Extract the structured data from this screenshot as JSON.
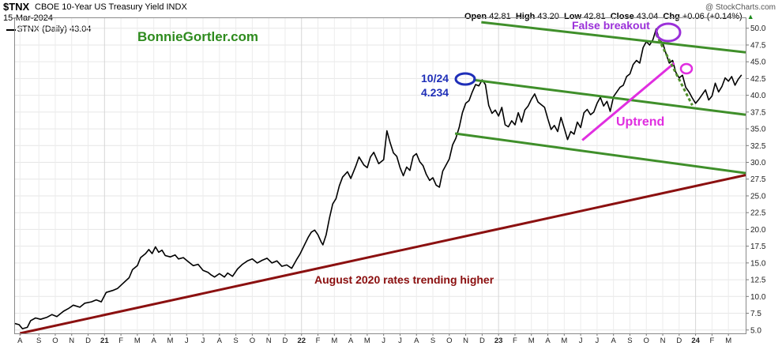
{
  "header": {
    "symbol": "$TNX",
    "description": "CBOE 10-Year US Treasury Yield INDX",
    "date": "15-Mar-2024",
    "legend": "$TNX (Daily) 43.04",
    "credit": "@ StockCharts.com",
    "ohlc": {
      "open_label": "Open",
      "open": "42.81",
      "high_label": "High",
      "high": "43.20",
      "low_label": "Low",
      "low": "42.81",
      "close_label": "Close",
      "close": "43.04",
      "chg_label": "Chg",
      "chg": "+0.06 (+0.14%)"
    }
  },
  "chart_data": {
    "type": "line",
    "title": "CBOE 10-Year US Treasury Yield INDX",
    "ylim": [
      4.5,
      51.5
    ],
    "y_ticks": [
      5.0,
      7.5,
      10.0,
      12.5,
      15.0,
      17.5,
      20.0,
      22.5,
      25.0,
      27.5,
      30.0,
      32.5,
      35.0,
      37.5,
      40.0,
      42.5,
      45.0,
      47.5,
      50.0
    ],
    "y_tick_labels": [
      "5.0",
      "7.5",
      "10.0",
      "12.5",
      "15.0",
      "17.5",
      "20.0",
      "22.5",
      "25.0",
      "27.5",
      "30.0",
      "32.5",
      "35.0",
      "37.5",
      "40.0",
      "42.5",
      "45.0",
      "47.5",
      "50.0"
    ],
    "x_range": [
      0,
      44.55
    ],
    "x_ticks": [
      {
        "label": "A",
        "m": 0.35,
        "bold": false
      },
      {
        "label": "S",
        "m": 1.5,
        "bold": false
      },
      {
        "label": "O",
        "m": 2.5,
        "bold": false
      },
      {
        "label": "N",
        "m": 3.5,
        "bold": false
      },
      {
        "label": "D",
        "m": 4.5,
        "bold": false
      },
      {
        "label": "21",
        "m": 5.5,
        "bold": true
      },
      {
        "label": "F",
        "m": 6.5,
        "bold": false
      },
      {
        "label": "M",
        "m": 7.5,
        "bold": false
      },
      {
        "label": "A",
        "m": 8.5,
        "bold": false
      },
      {
        "label": "M",
        "m": 9.5,
        "bold": false
      },
      {
        "label": "J",
        "m": 10.5,
        "bold": false
      },
      {
        "label": "J",
        "m": 11.5,
        "bold": false
      },
      {
        "label": "A",
        "m": 12.5,
        "bold": false
      },
      {
        "label": "S",
        "m": 13.5,
        "bold": false
      },
      {
        "label": "O",
        "m": 14.5,
        "bold": false
      },
      {
        "label": "N",
        "m": 15.5,
        "bold": false
      },
      {
        "label": "D",
        "m": 16.5,
        "bold": false
      },
      {
        "label": "22",
        "m": 17.5,
        "bold": true
      },
      {
        "label": "F",
        "m": 18.5,
        "bold": false
      },
      {
        "label": "M",
        "m": 19.5,
        "bold": false
      },
      {
        "label": "A",
        "m": 20.5,
        "bold": false
      },
      {
        "label": "M",
        "m": 21.5,
        "bold": false
      },
      {
        "label": "J",
        "m": 22.5,
        "bold": false
      },
      {
        "label": "J",
        "m": 23.5,
        "bold": false
      },
      {
        "label": "A",
        "m": 24.5,
        "bold": false
      },
      {
        "label": "S",
        "m": 25.5,
        "bold": false
      },
      {
        "label": "O",
        "m": 26.5,
        "bold": false
      },
      {
        "label": "N",
        "m": 27.5,
        "bold": false
      },
      {
        "label": "D",
        "m": 28.5,
        "bold": false
      },
      {
        "label": "23",
        "m": 29.5,
        "bold": true
      },
      {
        "label": "F",
        "m": 30.5,
        "bold": false
      },
      {
        "label": "M",
        "m": 31.5,
        "bold": false
      },
      {
        "label": "A",
        "m": 32.5,
        "bold": false
      },
      {
        "label": "M",
        "m": 33.5,
        "bold": false
      },
      {
        "label": "J",
        "m": 34.5,
        "bold": false
      },
      {
        "label": "J",
        "m": 35.5,
        "bold": false
      },
      {
        "label": "A",
        "m": 36.5,
        "bold": false
      },
      {
        "label": "S",
        "m": 37.5,
        "bold": false
      },
      {
        "label": "O",
        "m": 38.5,
        "bold": false
      },
      {
        "label": "N",
        "m": 39.5,
        "bold": false
      },
      {
        "label": "D",
        "m": 40.5,
        "bold": false
      },
      {
        "label": "24",
        "m": 41.5,
        "bold": true
      },
      {
        "label": "F",
        "m": 42.5,
        "bold": false
      },
      {
        "label": "M",
        "m": 43.5,
        "bold": false
      }
    ],
    "series": [
      {
        "name": "$TNX (Daily)",
        "color": "#000000",
        "points": [
          [
            0.0,
            6.0
          ],
          [
            0.3,
            5.8
          ],
          [
            0.5,
            5.2
          ],
          [
            0.8,
            5.4
          ],
          [
            1.0,
            6.4
          ],
          [
            1.3,
            6.8
          ],
          [
            1.6,
            6.6
          ],
          [
            2.0,
            6.9
          ],
          [
            2.3,
            7.3
          ],
          [
            2.6,
            7.0
          ],
          [
            3.0,
            7.8
          ],
          [
            3.3,
            8.2
          ],
          [
            3.6,
            8.7
          ],
          [
            4.0,
            8.4
          ],
          [
            4.3,
            9.0
          ],
          [
            4.7,
            9.2
          ],
          [
            5.0,
            9.5
          ],
          [
            5.3,
            9.2
          ],
          [
            5.6,
            10.6
          ],
          [
            6.0,
            10.9
          ],
          [
            6.3,
            11.2
          ],
          [
            6.6,
            11.9
          ],
          [
            7.0,
            12.8
          ],
          [
            7.2,
            14.0
          ],
          [
            7.5,
            14.6
          ],
          [
            7.7,
            15.8
          ],
          [
            8.0,
            16.4
          ],
          [
            8.2,
            17.0
          ],
          [
            8.4,
            16.4
          ],
          [
            8.6,
            17.4
          ],
          [
            8.8,
            16.6
          ],
          [
            9.0,
            16.9
          ],
          [
            9.2,
            16.1
          ],
          [
            9.5,
            15.9
          ],
          [
            9.8,
            16.2
          ],
          [
            10.0,
            15.6
          ],
          [
            10.3,
            15.8
          ],
          [
            10.6,
            15.2
          ],
          [
            10.9,
            14.6
          ],
          [
            11.2,
            14.8
          ],
          [
            11.5,
            13.9
          ],
          [
            11.8,
            13.6
          ],
          [
            12.0,
            13.2
          ],
          [
            12.2,
            12.9
          ],
          [
            12.5,
            13.4
          ],
          [
            12.8,
            12.9
          ],
          [
            13.0,
            13.5
          ],
          [
            13.3,
            13.0
          ],
          [
            13.6,
            14.1
          ],
          [
            13.9,
            14.8
          ],
          [
            14.2,
            15.3
          ],
          [
            14.5,
            15.6
          ],
          [
            14.8,
            15.0
          ],
          [
            15.1,
            15.4
          ],
          [
            15.4,
            15.7
          ],
          [
            15.7,
            15.0
          ],
          [
            16.0,
            15.3
          ],
          [
            16.3,
            14.5
          ],
          [
            16.6,
            14.7
          ],
          [
            16.9,
            14.2
          ],
          [
            17.2,
            15.5
          ],
          [
            17.4,
            16.3
          ],
          [
            17.7,
            17.8
          ],
          [
            17.9,
            18.8
          ],
          [
            18.1,
            19.6
          ],
          [
            18.3,
            19.9
          ],
          [
            18.5,
            19.2
          ],
          [
            18.7,
            18.1
          ],
          [
            18.8,
            17.7
          ],
          [
            19.0,
            19.2
          ],
          [
            19.2,
            21.7
          ],
          [
            19.4,
            23.8
          ],
          [
            19.6,
            24.6
          ],
          [
            19.8,
            26.5
          ],
          [
            20.0,
            27.8
          ],
          [
            20.3,
            28.6
          ],
          [
            20.5,
            27.6
          ],
          [
            20.8,
            29.4
          ],
          [
            21.0,
            30.8
          ],
          [
            21.3,
            29.6
          ],
          [
            21.5,
            29.2
          ],
          [
            21.7,
            30.8
          ],
          [
            21.9,
            31.5
          ],
          [
            22.2,
            29.8
          ],
          [
            22.5,
            30.4
          ],
          [
            22.7,
            34.7
          ],
          [
            22.9,
            32.9
          ],
          [
            23.1,
            31.4
          ],
          [
            23.3,
            30.9
          ],
          [
            23.5,
            29.2
          ],
          [
            23.7,
            28.0
          ],
          [
            23.9,
            29.3
          ],
          [
            24.1,
            28.8
          ],
          [
            24.3,
            30.9
          ],
          [
            24.5,
            31.3
          ],
          [
            24.7,
            30.1
          ],
          [
            24.9,
            29.5
          ],
          [
            25.1,
            28.2
          ],
          [
            25.3,
            27.3
          ],
          [
            25.5,
            27.7
          ],
          [
            25.7,
            26.6
          ],
          [
            25.9,
            26.3
          ],
          [
            26.1,
            28.7
          ],
          [
            26.3,
            29.6
          ],
          [
            26.5,
            30.5
          ],
          [
            26.7,
            32.6
          ],
          [
            26.9,
            33.6
          ],
          [
            27.1,
            35.2
          ],
          [
            27.3,
            37.4
          ],
          [
            27.5,
            38.8
          ],
          [
            27.7,
            39.2
          ],
          [
            27.9,
            40.5
          ],
          [
            28.1,
            41.6
          ],
          [
            28.3,
            41.4
          ],
          [
            28.5,
            42.3
          ],
          [
            28.7,
            41.6
          ],
          [
            28.9,
            38.5
          ],
          [
            29.1,
            37.3
          ],
          [
            29.3,
            37.8
          ],
          [
            29.5,
            36.9
          ],
          [
            29.7,
            38.2
          ],
          [
            29.9,
            35.6
          ],
          [
            30.1,
            35.3
          ],
          [
            30.3,
            36.2
          ],
          [
            30.5,
            35.6
          ],
          [
            30.7,
            37.4
          ],
          [
            30.9,
            36.0
          ],
          [
            31.1,
            37.8
          ],
          [
            31.3,
            38.4
          ],
          [
            31.5,
            39.4
          ],
          [
            31.7,
            40.2
          ],
          [
            31.9,
            39.0
          ],
          [
            32.1,
            38.6
          ],
          [
            32.3,
            38.2
          ],
          [
            32.5,
            36.5
          ],
          [
            32.7,
            34.9
          ],
          [
            32.9,
            35.5
          ],
          [
            33.1,
            34.6
          ],
          [
            33.3,
            36.7
          ],
          [
            33.5,
            35.1
          ],
          [
            33.7,
            33.4
          ],
          [
            33.9,
            34.6
          ],
          [
            34.1,
            34.2
          ],
          [
            34.3,
            36.0
          ],
          [
            34.5,
            35.2
          ],
          [
            34.7,
            37.4
          ],
          [
            34.9,
            37.9
          ],
          [
            35.1,
            37.1
          ],
          [
            35.3,
            37.5
          ],
          [
            35.5,
            38.8
          ],
          [
            35.7,
            39.7
          ],
          [
            35.9,
            38.4
          ],
          [
            36.1,
            39.1
          ],
          [
            36.3,
            37.6
          ],
          [
            36.5,
            39.8
          ],
          [
            36.7,
            40.5
          ],
          [
            36.9,
            41.2
          ],
          [
            37.1,
            41.5
          ],
          [
            37.3,
            42.8
          ],
          [
            37.5,
            43.2
          ],
          [
            37.7,
            44.6
          ],
          [
            37.9,
            45.2
          ],
          [
            38.1,
            44.8
          ],
          [
            38.3,
            47.1
          ],
          [
            38.5,
            48.0
          ],
          [
            38.7,
            47.5
          ],
          [
            38.9,
            48.3
          ],
          [
            39.1,
            49.9
          ],
          [
            39.3,
            48.2
          ],
          [
            39.5,
            47.8
          ],
          [
            39.7,
            46.2
          ],
          [
            39.9,
            44.8
          ],
          [
            40.1,
            45.2
          ],
          [
            40.3,
            43.4
          ],
          [
            40.5,
            42.6
          ],
          [
            40.7,
            43.0
          ],
          [
            40.9,
            41.2
          ],
          [
            41.1,
            40.5
          ],
          [
            41.3,
            39.6
          ],
          [
            41.5,
            38.8
          ],
          [
            41.7,
            39.4
          ],
          [
            41.9,
            40.1
          ],
          [
            42.1,
            40.8
          ],
          [
            42.3,
            39.3
          ],
          [
            42.5,
            39.9
          ],
          [
            42.7,
            41.8
          ],
          [
            42.9,
            40.5
          ],
          [
            43.1,
            41.3
          ],
          [
            43.3,
            42.6
          ],
          [
            43.5,
            42.1
          ],
          [
            43.7,
            42.8
          ],
          [
            43.9,
            41.5
          ],
          [
            44.1,
            42.4
          ],
          [
            44.3,
            43.04
          ]
        ]
      }
    ],
    "annotations": {
      "site": {
        "text": "BonnieGortler.com",
        "color": "#2e8b1e"
      },
      "false_breakout": {
        "text": "False breakout",
        "color": "#9b30d9"
      },
      "peak_label_1": {
        "text": "10/24",
        "color": "#1f2fb8"
      },
      "peak_label_2": {
        "text": "4.234",
        "color": "#1f2fb8"
      },
      "uptrend": {
        "text": "Uptrend",
        "color": "#e02ee0"
      },
      "august": {
        "text": "August 2020 rates trending higher",
        "color": "#8b0f0f"
      }
    },
    "trendlines": [
      {
        "role": "upper channel top",
        "color": "#3f8f2a",
        "from": [
          28.45,
          50.9
        ],
        "to": [
          44.55,
          46.4
        ]
      },
      {
        "role": "upper channel bottom",
        "color": "#3f8f2a",
        "from": [
          27.95,
          42.3
        ],
        "to": [
          44.55,
          37.1
        ]
      },
      {
        "role": "lower channel",
        "color": "#3f8f2a",
        "from": [
          26.85,
          34.3
        ],
        "to": [
          44.55,
          28.4
        ]
      },
      {
        "role": "long-term trend",
        "color": "#8b1010",
        "from": [
          0.35,
          4.5
        ],
        "to": [
          44.55,
          28.1
        ]
      },
      {
        "role": "uptrend",
        "color": "#e02ee0",
        "from": [
          34.6,
          33.3
        ],
        "to": [
          40.2,
          44.8
        ]
      },
      {
        "role": "breakdown",
        "color": "#4f8f2a",
        "from": [
          39.1,
          49.1
        ],
        "to": [
          41.3,
          38.5
        ]
      }
    ]
  }
}
